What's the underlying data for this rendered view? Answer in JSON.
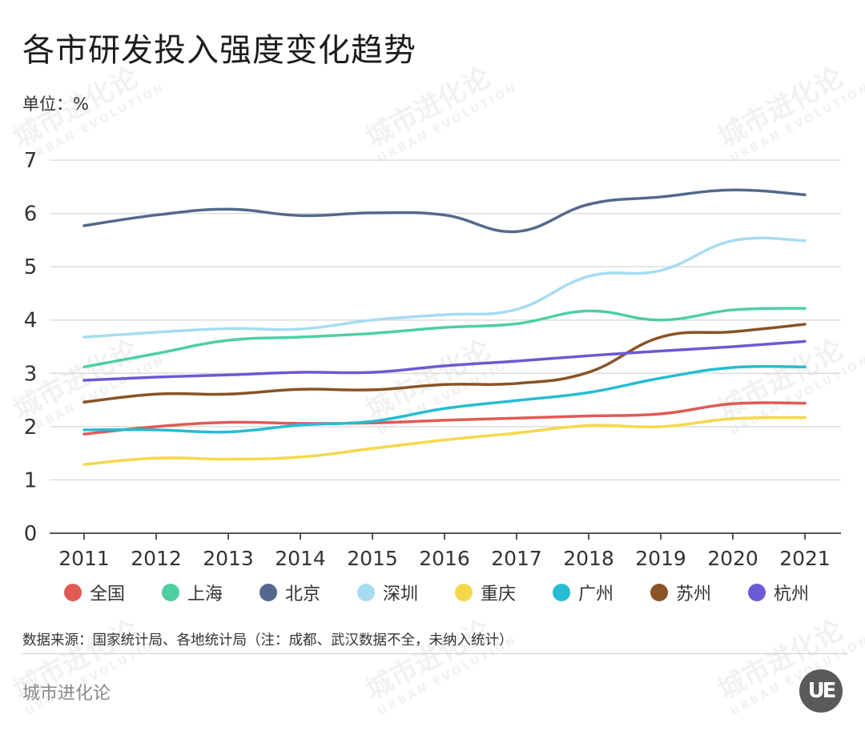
{
  "header": {
    "title": "各市研发投入强度变化趋势",
    "unit": "单位：%"
  },
  "footer": {
    "source": "数据来源：国家统计局、各地统计局（注：成都、武汉数据不全，未纳入统计）",
    "brand": "城市进化论",
    "logo_text": "UE",
    "watermark_cn": "城市进化论",
    "watermark_en": "URBAN EVOLUTION"
  },
  "chart_data": {
    "type": "line",
    "title": "各市研发投入强度变化趋势",
    "xlabel": "",
    "ylabel": "单位：%",
    "ylim": [
      0,
      7
    ],
    "yticks": [
      0,
      1,
      2,
      3,
      4,
      5,
      6,
      7
    ],
    "grid": true,
    "legend_position": "bottom",
    "smooth": true,
    "x": [
      "2011",
      "2012",
      "2013",
      "2014",
      "2015",
      "2016",
      "2017",
      "2018",
      "2019",
      "2020",
      "2021"
    ],
    "series": [
      {
        "name": "全国",
        "color": "#e05a55",
        "values": [
          1.86,
          2.0,
          2.08,
          2.06,
          2.07,
          2.12,
          2.16,
          2.2,
          2.24,
          2.43,
          2.44
        ]
      },
      {
        "name": "上海",
        "color": "#4ecf9f",
        "values": [
          3.12,
          3.37,
          3.62,
          3.68,
          3.75,
          3.86,
          3.93,
          4.17,
          4.0,
          4.19,
          4.22
        ]
      },
      {
        "name": "北京",
        "color": "#54688f",
        "values": [
          5.77,
          5.97,
          6.08,
          5.96,
          6.01,
          5.97,
          5.66,
          6.17,
          6.31,
          6.44,
          6.35
        ]
      },
      {
        "name": "深圳",
        "color": "#a6dcf2",
        "values": [
          3.68,
          3.77,
          3.84,
          3.83,
          4.0,
          4.1,
          4.2,
          4.82,
          4.93,
          5.49,
          5.49
        ]
      },
      {
        "name": "重庆",
        "color": "#f5d84a",
        "values": [
          1.29,
          1.41,
          1.39,
          1.43,
          1.59,
          1.75,
          1.88,
          2.02,
          2.0,
          2.15,
          2.17
        ]
      },
      {
        "name": "广州",
        "color": "#26bcd4",
        "values": [
          1.94,
          1.94,
          1.9,
          2.03,
          2.1,
          2.34,
          2.49,
          2.64,
          2.91,
          3.11,
          3.12
        ]
      },
      {
        "name": "苏州",
        "color": "#8a5326",
        "values": [
          2.46,
          2.61,
          2.61,
          2.7,
          2.69,
          2.79,
          2.81,
          3.02,
          3.68,
          3.78,
          3.92
        ]
      },
      {
        "name": "杭州",
        "color": "#6a5ad6",
        "values": [
          2.87,
          2.93,
          2.97,
          3.02,
          3.02,
          3.14,
          3.23,
          3.33,
          3.42,
          3.5,
          3.6
        ]
      }
    ]
  }
}
